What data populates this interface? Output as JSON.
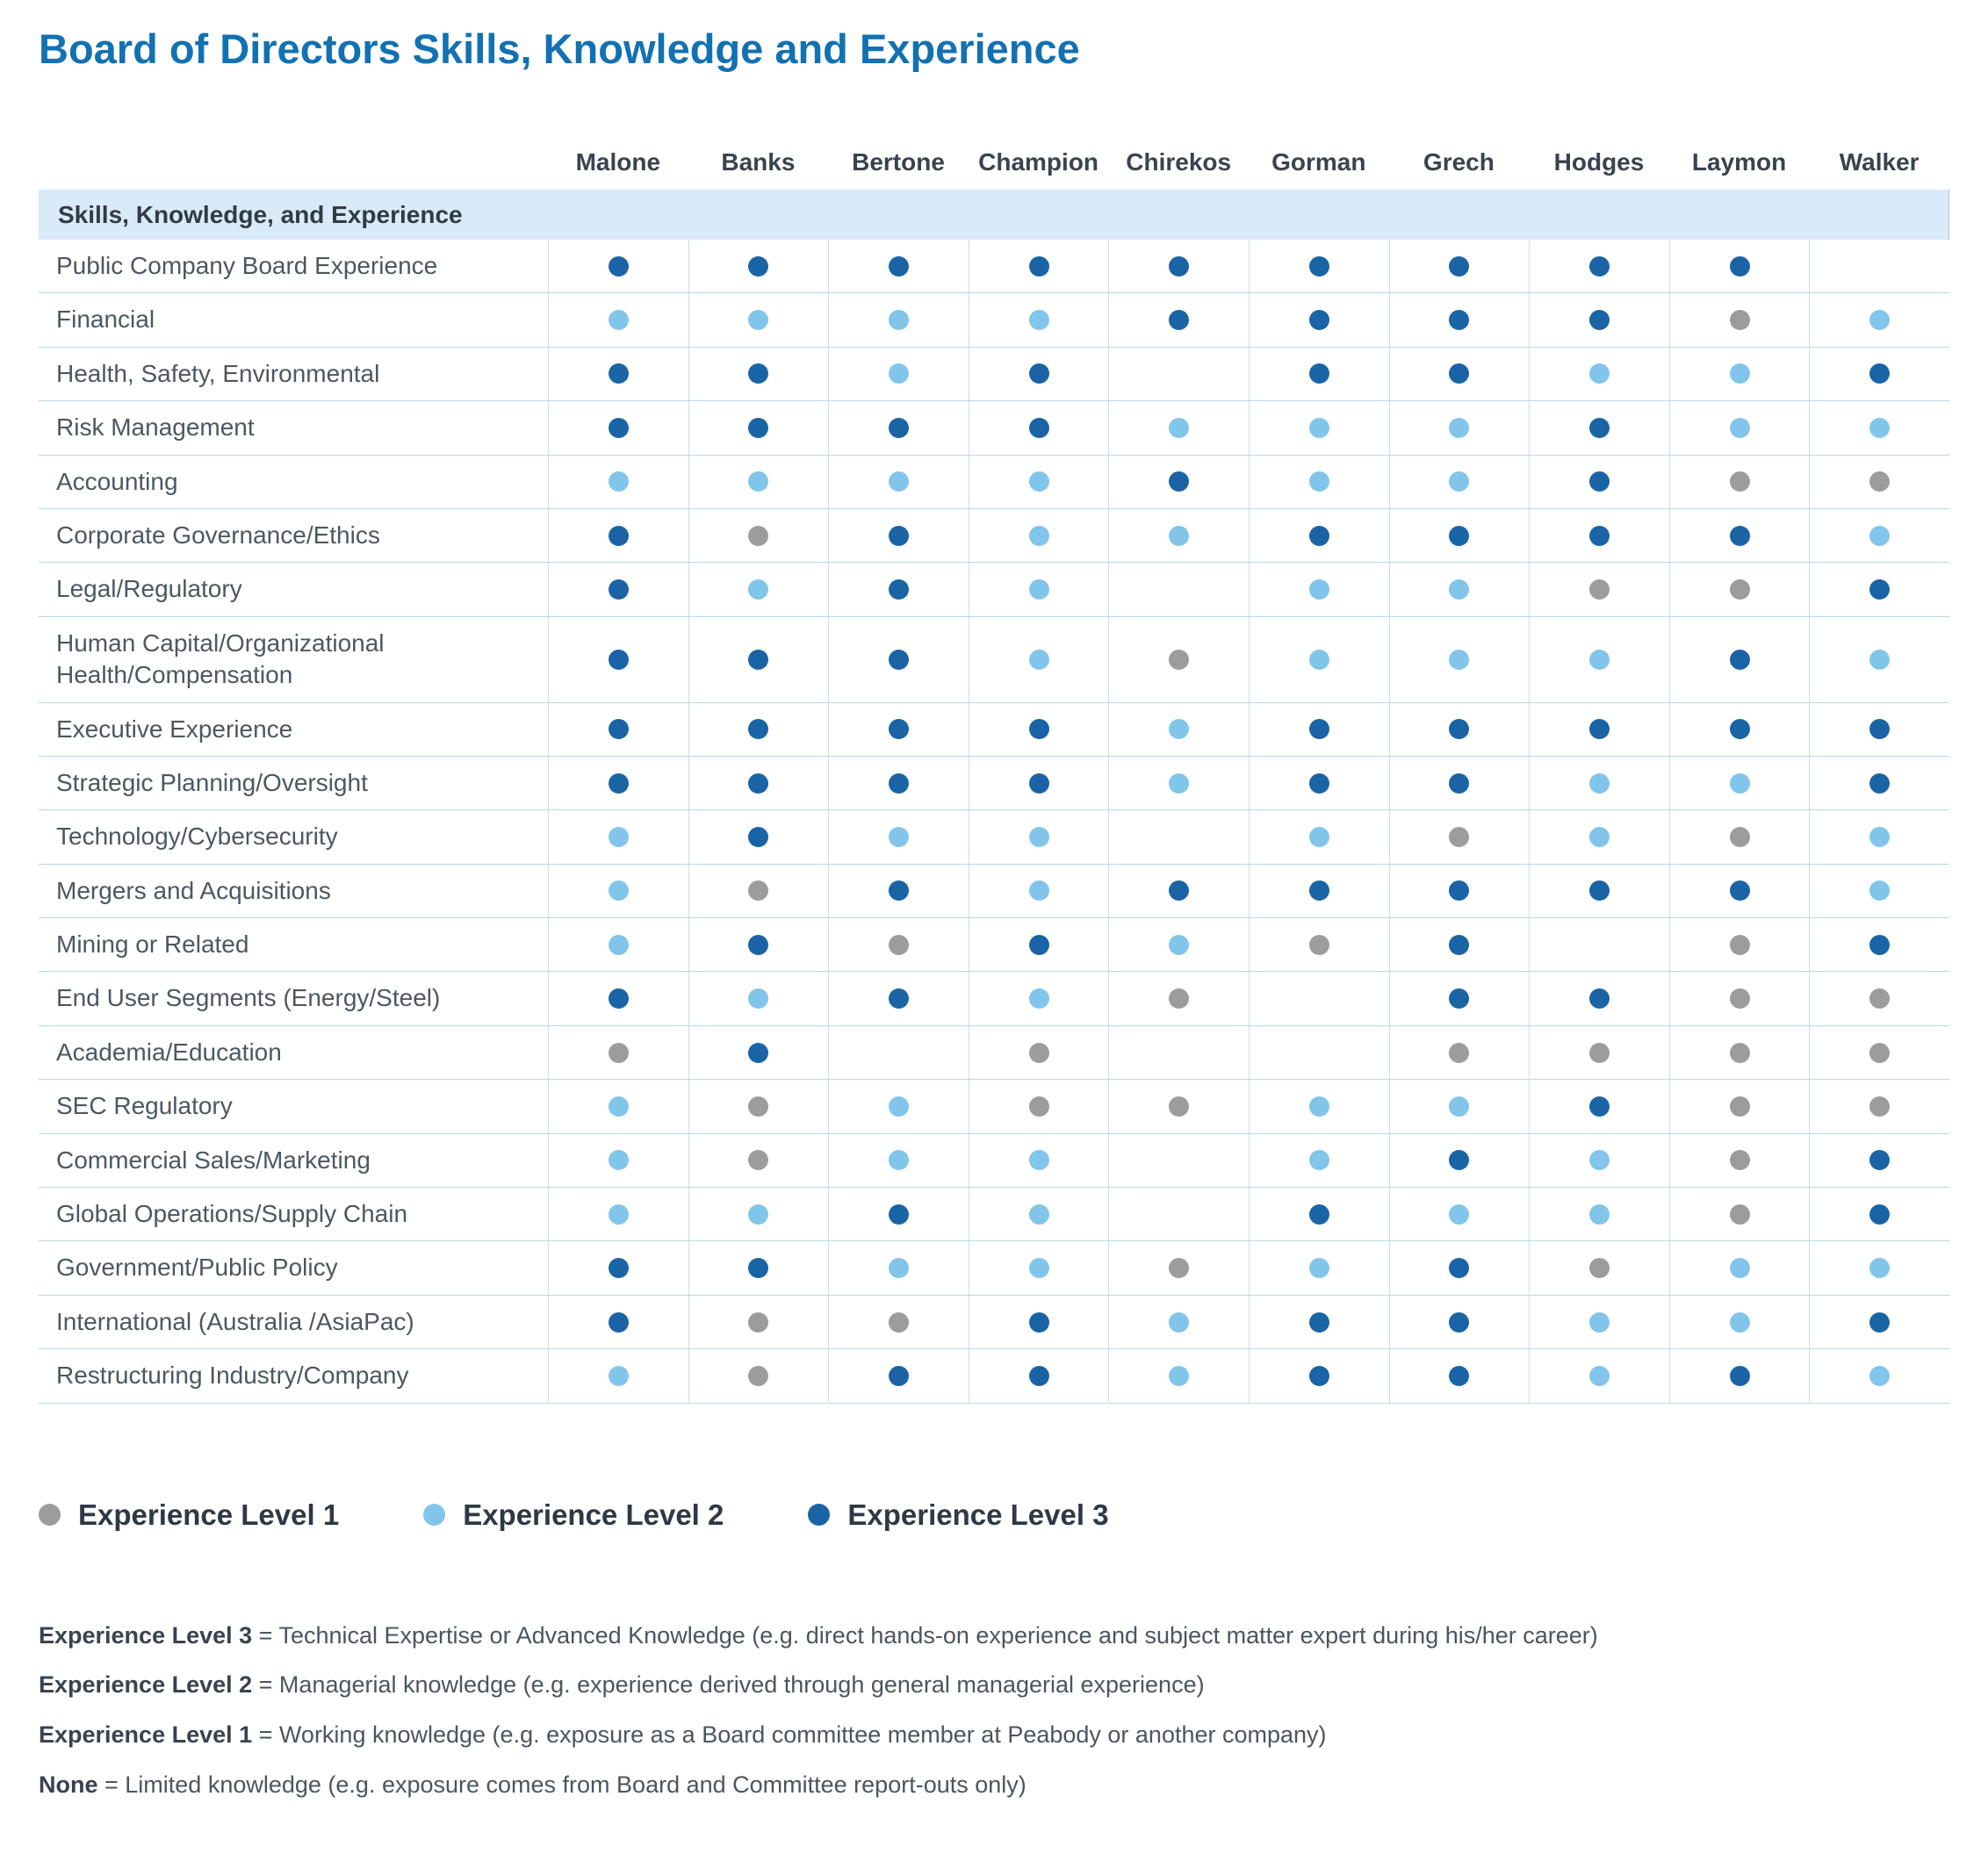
{
  "title": "Board of Directors Skills, Knowledge and Experience",
  "table": {
    "section_header": "Skills, Knowledge, and Experience"
  },
  "chart_data": {
    "type": "table",
    "title": "Board of Directors Skills, Knowledge and Experience",
    "columns": [
      "Malone",
      "Banks",
      "Bertone",
      "Champion",
      "Chirekos",
      "Gorman",
      "Grech",
      "Hodges",
      "Laymon",
      "Walker"
    ],
    "levels_meaning": {
      "0": "None",
      "1": "Experience Level 1",
      "2": "Experience Level 2",
      "3": "Experience Level 3"
    },
    "rows": [
      {
        "skill": "Public Company Board Experience",
        "levels": [
          3,
          3,
          3,
          3,
          3,
          3,
          3,
          3,
          3,
          0
        ]
      },
      {
        "skill": "Financial",
        "levels": [
          2,
          2,
          2,
          2,
          3,
          3,
          3,
          3,
          1,
          2
        ]
      },
      {
        "skill": "Health, Safety, Environmental",
        "levels": [
          3,
          3,
          2,
          3,
          0,
          3,
          3,
          2,
          2,
          3
        ]
      },
      {
        "skill": "Risk Management",
        "levels": [
          3,
          3,
          3,
          3,
          2,
          2,
          2,
          3,
          2,
          2
        ]
      },
      {
        "skill": "Accounting",
        "levels": [
          2,
          2,
          2,
          2,
          3,
          2,
          2,
          3,
          1,
          1
        ]
      },
      {
        "skill": "Corporate Governance/Ethics",
        "levels": [
          3,
          1,
          3,
          2,
          2,
          3,
          3,
          3,
          3,
          2
        ]
      },
      {
        "skill": "Legal/Regulatory",
        "levels": [
          3,
          2,
          3,
          2,
          0,
          2,
          2,
          1,
          1,
          3
        ]
      },
      {
        "skill": "Human Capital/Organizational Health/Compensation",
        "levels": [
          3,
          3,
          3,
          2,
          1,
          2,
          2,
          2,
          3,
          2
        ]
      },
      {
        "skill": "Executive Experience",
        "levels": [
          3,
          3,
          3,
          3,
          2,
          3,
          3,
          3,
          3,
          3
        ]
      },
      {
        "skill": "Strategic Planning/Oversight",
        "levels": [
          3,
          3,
          3,
          3,
          2,
          3,
          3,
          2,
          2,
          3
        ]
      },
      {
        "skill": "Technology/Cybersecurity",
        "levels": [
          2,
          3,
          2,
          2,
          0,
          2,
          1,
          2,
          1,
          2
        ]
      },
      {
        "skill": "Mergers and Acquisitions",
        "levels": [
          2,
          1,
          3,
          2,
          3,
          3,
          3,
          3,
          3,
          2
        ]
      },
      {
        "skill": "Mining or Related",
        "levels": [
          2,
          3,
          1,
          3,
          2,
          1,
          3,
          0,
          1,
          3
        ]
      },
      {
        "skill": "End User Segments (Energy/Steel)",
        "levels": [
          3,
          2,
          3,
          2,
          1,
          0,
          3,
          3,
          1,
          1
        ]
      },
      {
        "skill": "Academia/Education",
        "levels": [
          1,
          3,
          0,
          1,
          0,
          0,
          1,
          1,
          1,
          1
        ]
      },
      {
        "skill": "SEC Regulatory",
        "levels": [
          2,
          1,
          2,
          1,
          1,
          2,
          2,
          3,
          1,
          1
        ]
      },
      {
        "skill": "Commercial Sales/Marketing",
        "levels": [
          2,
          1,
          2,
          2,
          0,
          2,
          3,
          2,
          1,
          3
        ]
      },
      {
        "skill": "Global Operations/Supply Chain",
        "levels": [
          2,
          2,
          3,
          2,
          0,
          3,
          2,
          2,
          1,
          3
        ]
      },
      {
        "skill": "Government/Public Policy",
        "levels": [
          3,
          3,
          2,
          2,
          1,
          2,
          3,
          1,
          2,
          2
        ]
      },
      {
        "skill": "International (Australia /AsiaPac)",
        "levels": [
          3,
          1,
          1,
          3,
          2,
          3,
          3,
          2,
          2,
          3
        ]
      },
      {
        "skill": "Restructuring Industry/Company",
        "levels": [
          2,
          1,
          3,
          3,
          2,
          3,
          3,
          2,
          3,
          2
        ]
      }
    ]
  },
  "legend": {
    "items": [
      {
        "label": "Experience Level 1",
        "level": 1,
        "color": "#9c9c9c"
      },
      {
        "label": "Experience Level 2",
        "level": 2,
        "color": "#82c5ea"
      },
      {
        "label": "Experience Level 3",
        "level": 3,
        "color": "#1a64a5"
      }
    ]
  },
  "footnotes": [
    {
      "term": "Experience Level 3",
      "text": "= Technical Expertise or Advanced Knowledge (e.g. direct hands-on experience and subject matter expert during his/her career)"
    },
    {
      "term": "Experience Level 2",
      "text": "= Managerial knowledge (e.g. experience derived through general managerial experience)"
    },
    {
      "term": "Experience Level 1",
      "text": "= Working knowledge (e.g. exposure as a Board committee member at Peabody or another company)"
    },
    {
      "term": "None",
      "text": "= Limited knowledge (e.g. exposure comes from Board and Committee report-outs only)"
    }
  ],
  "colors": {
    "title": "#1271b3",
    "band_bg": "#d9eaf8",
    "line": "#b7d8ee",
    "level_1": "#9c9c9c",
    "level_2": "#82c5ea",
    "level_3": "#1a64a5",
    "text": "#4d5761"
  }
}
